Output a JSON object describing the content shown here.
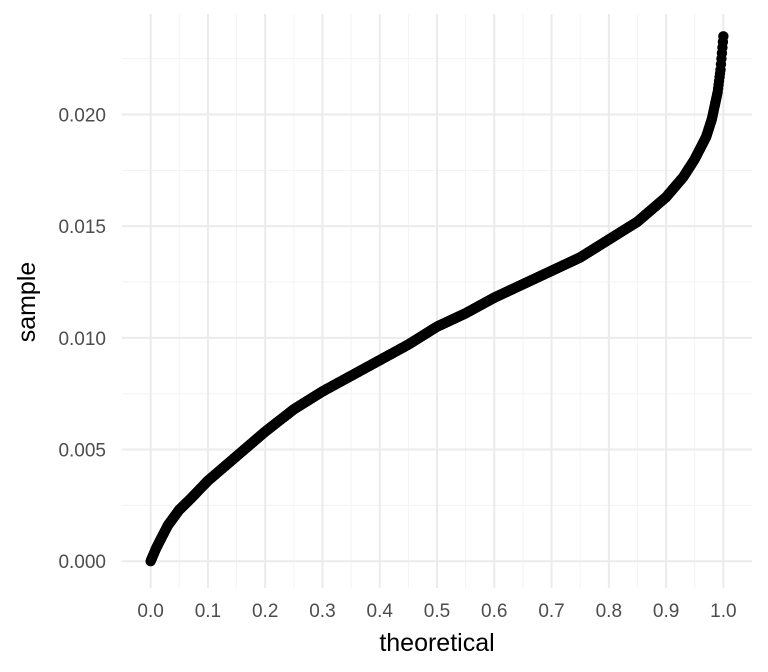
{
  "chart_data": {
    "type": "scatter",
    "title": "",
    "xlabel": "theoretical",
    "ylabel": "sample",
    "xlim": [
      -0.05,
      1.05
    ],
    "ylim": [
      -0.0012,
      0.0245
    ],
    "x_ticks": [
      0.0,
      0.1,
      0.2,
      0.3,
      0.4,
      0.5,
      0.6,
      0.7,
      0.8,
      0.9,
      1.0
    ],
    "x_tick_labels": [
      "0.0",
      "0.1",
      "0.2",
      "0.3",
      "0.4",
      "0.5",
      "0.6",
      "0.7",
      "0.8",
      "0.9",
      "1.0"
    ],
    "y_ticks": [
      0.0,
      0.005,
      0.01,
      0.015,
      0.02
    ],
    "y_tick_labels": [
      "0.000",
      "0.005",
      "0.010",
      "0.015",
      "0.020"
    ],
    "grid": true,
    "legend": "none",
    "point_color": "#000000",
    "series": [
      {
        "x": [
          0.0,
          0.01,
          0.02,
          0.03,
          0.05,
          0.07,
          0.1,
          0.15,
          0.2,
          0.25,
          0.3,
          0.35,
          0.4,
          0.45,
          0.5,
          0.55,
          0.6,
          0.65,
          0.7,
          0.75,
          0.8,
          0.85,
          0.9,
          0.93,
          0.95,
          0.97,
          0.98,
          0.99,
          0.995,
          1.0
        ],
        "y": [
          0.0,
          0.0006,
          0.0011,
          0.0016,
          0.0023,
          0.0028,
          0.0036,
          0.0047,
          0.0058,
          0.0068,
          0.0076,
          0.0083,
          0.009,
          0.0097,
          0.0105,
          0.0111,
          0.0118,
          0.0124,
          0.013,
          0.0136,
          0.0144,
          0.0152,
          0.0163,
          0.0172,
          0.018,
          0.019,
          0.0198,
          0.021,
          0.022,
          0.0235
        ]
      }
    ]
  }
}
